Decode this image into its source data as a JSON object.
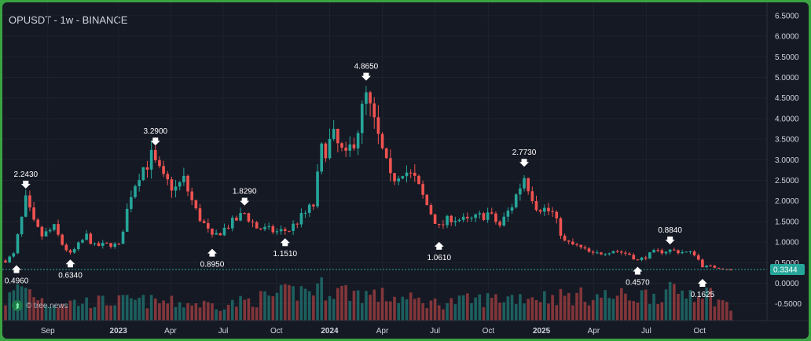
{
  "header": {
    "title": "OPUSDT - 1w - BINANCE"
  },
  "watermark": {
    "text": "© tree.news",
    "icon": "double-chevron-up-icon"
  },
  "colors": {
    "up": "#26a69a",
    "down": "#ef5350",
    "last_price": "#26a69a",
    "frame": "#3aa342",
    "background": "#151924"
  },
  "chart_data": {
    "type": "candlestick",
    "title": "OPUSDT - 1w - BINANCE",
    "interval": "1w",
    "exchange": "BINANCE",
    "ylim": [
      -0.65,
      6.65
    ],
    "yticks": [
      -0.5,
      0.0,
      0.5,
      1.0,
      1.5,
      2.0,
      2.5,
      3.0,
      3.5,
      4.0,
      4.5,
      5.0,
      5.5,
      6.0,
      6.5
    ],
    "ytick_labels": [
      "-0.5000",
      "0.0000",
      "0.5000",
      "1.0000",
      "1.5000",
      "2.0000",
      "2.5000",
      "3.0000",
      "3.5000",
      "4.0000",
      "4.5000",
      "5.0000",
      "5.5000",
      "6.0000",
      "6.5000"
    ],
    "x_start": "2022-06-20",
    "xticks": [
      {
        "label": "Sep",
        "date": "2022-09-01",
        "bold": false
      },
      {
        "label": "2023",
        "date": "2023-01-01",
        "bold": true
      },
      {
        "label": "Apr",
        "date": "2023-04-01",
        "bold": false
      },
      {
        "label": "Jul",
        "date": "2023-07-01",
        "bold": false
      },
      {
        "label": "Oct",
        "date": "2023-10-01",
        "bold": false
      },
      {
        "label": "2024",
        "date": "2024-01-01",
        "bold": true
      },
      {
        "label": "Apr",
        "date": "2024-04-01",
        "bold": false
      },
      {
        "label": "Jul",
        "date": "2024-07-01",
        "bold": false
      },
      {
        "label": "Oct",
        "date": "2024-10-01",
        "bold": false
      },
      {
        "label": "2025",
        "date": "2025-01-01",
        "bold": true
      },
      {
        "label": "Apr",
        "date": "2025-04-01",
        "bold": false
      },
      {
        "label": "Jul",
        "date": "2025-07-01",
        "bold": false
      },
      {
        "label": "Oct",
        "date": "2025-10-01",
        "bold": false
      }
    ],
    "last_price": 0.3344,
    "last_price_label": "0.3344",
    "annotations": [
      {
        "label": "0.4960",
        "date": "2022-06-20",
        "price": 0.496,
        "type": "low"
      },
      {
        "label": "2.2430",
        "date": "2022-07-25",
        "price": 2.243,
        "type": "high"
      },
      {
        "label": "0.6340",
        "date": "2022-10-10",
        "price": 0.634,
        "type": "low"
      },
      {
        "label": "3.2900",
        "date": "2023-03-06",
        "price": 3.29,
        "type": "high"
      },
      {
        "label": "0.8950",
        "date": "2023-06-12",
        "price": 0.895,
        "type": "low"
      },
      {
        "label": "1.8290",
        "date": "2023-08-07",
        "price": 1.829,
        "type": "high"
      },
      {
        "label": "1.1510",
        "date": "2023-10-16",
        "price": 1.151,
        "type": "low"
      },
      {
        "label": "4.8650",
        "date": "2024-03-04",
        "price": 4.865,
        "type": "high"
      },
      {
        "label": "1.0610",
        "date": "2024-07-08",
        "price": 1.061,
        "type": "low"
      },
      {
        "label": "2.7730",
        "date": "2024-12-02",
        "price": 2.773,
        "type": "high"
      },
      {
        "label": "0.4570",
        "date": "2025-06-16",
        "price": 0.457,
        "type": "low"
      },
      {
        "label": "0.8840",
        "date": "2025-08-11",
        "price": 0.884,
        "type": "high"
      },
      {
        "label": "0.1625",
        "date": "2025-10-06",
        "price": 0.1625,
        "type": "low"
      }
    ],
    "anchors": [
      [
        "2022-06-20",
        0.55
      ],
      [
        "2022-07-04",
        0.7
      ],
      [
        "2022-07-25",
        2.0
      ],
      [
        "2022-08-08",
        1.45
      ],
      [
        "2022-08-22",
        1.15
      ],
      [
        "2022-09-12",
        1.35
      ],
      [
        "2022-09-26",
        0.95
      ],
      [
        "2022-10-10",
        0.7
      ],
      [
        "2022-11-07",
        1.15
      ],
      [
        "2022-11-21",
        0.9
      ],
      [
        "2022-12-19",
        0.95
      ],
      [
        "2023-01-02",
        0.9
      ],
      [
        "2023-01-23",
        2.2
      ],
      [
        "2023-02-06",
        2.7
      ],
      [
        "2023-02-27",
        3.05
      ],
      [
        "2023-03-20",
        2.5
      ],
      [
        "2023-04-10",
        2.3
      ],
      [
        "2023-04-24",
        2.5
      ],
      [
        "2023-05-15",
        1.75
      ],
      [
        "2023-06-12",
        1.1
      ],
      [
        "2023-07-10",
        1.4
      ],
      [
        "2023-08-07",
        1.7
      ],
      [
        "2023-08-28",
        1.35
      ],
      [
        "2023-10-02",
        1.25
      ],
      [
        "2023-10-23",
        1.3
      ],
      [
        "2023-11-13",
        1.6
      ],
      [
        "2023-12-04",
        1.9
      ],
      [
        "2023-12-18",
        3.2
      ],
      [
        "2024-01-08",
        3.5
      ],
      [
        "2024-01-29",
        3.0
      ],
      [
        "2024-02-19",
        3.8
      ],
      [
        "2024-03-04",
        4.5
      ],
      [
        "2024-03-25",
        3.5
      ],
      [
        "2024-04-15",
        2.5
      ],
      [
        "2024-05-06",
        2.8
      ],
      [
        "2024-05-27",
        2.5
      ],
      [
        "2024-06-17",
        1.9
      ],
      [
        "2024-07-08",
        1.35
      ],
      [
        "2024-07-29",
        1.6
      ],
      [
        "2024-08-26",
        1.5
      ],
      [
        "2024-09-30",
        1.7
      ],
      [
        "2024-10-21",
        1.4
      ],
      [
        "2024-11-11",
        1.9
      ],
      [
        "2024-12-02",
        2.6
      ],
      [
        "2024-12-23",
        1.9
      ],
      [
        "2025-01-20",
        1.7
      ],
      [
        "2025-02-10",
        1.0
      ],
      [
        "2025-03-03",
        0.9
      ],
      [
        "2025-03-31",
        0.7
      ],
      [
        "2025-05-05",
        0.8
      ],
      [
        "2025-06-02",
        0.7
      ],
      [
        "2025-06-16",
        0.55
      ],
      [
        "2025-07-14",
        0.75
      ],
      [
        "2025-08-11",
        0.8
      ],
      [
        "2025-09-22",
        0.72
      ],
      [
        "2025-10-06",
        0.42
      ],
      [
        "2025-11-03",
        0.38
      ],
      [
        "2025-11-24",
        0.3344
      ]
    ],
    "volume_anchors": [
      [
        "2022-06-20",
        0.45
      ],
      [
        "2022-07-18",
        0.8
      ],
      [
        "2022-09-01",
        0.4
      ],
      [
        "2023-02-01",
        0.45
      ],
      [
        "2023-07-01",
        0.35
      ],
      [
        "2023-12-15",
        0.75
      ],
      [
        "2024-03-04",
        0.6
      ],
      [
        "2024-07-01",
        0.4
      ],
      [
        "2024-12-01",
        0.55
      ],
      [
        "2025-06-01",
        0.55
      ],
      [
        "2025-10-06",
        0.7
      ],
      [
        "2025-11-24",
        0.3
      ]
    ]
  }
}
